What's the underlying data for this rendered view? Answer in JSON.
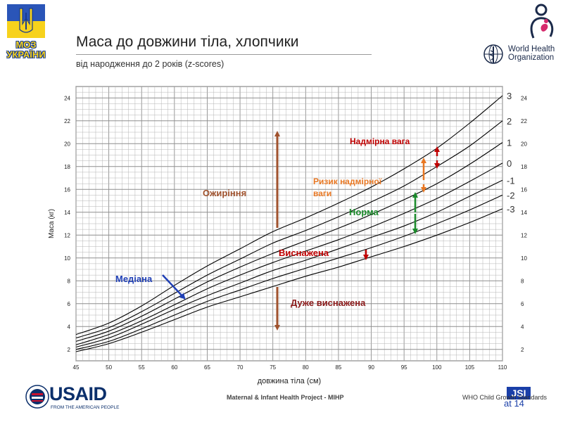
{
  "header": {
    "title": "Маса до довжини тіла, хлопчики",
    "subtitle": "від народження до 2 років (z-scores)"
  },
  "logos": {
    "moz": "МОЗ УКРАЇНИ",
    "who_line1": "World Health",
    "who_line2": "Organization",
    "usaid": "USAID",
    "usaid_tagline": "FROM THE AMERICAN PEOPLE"
  },
  "footer": {
    "project": "Maternal & Infant Health Project - MIHP",
    "standards": "WHO Child Growth Standards",
    "code": "at 14"
  },
  "colors": {
    "grid": "#b4b4b4",
    "curves": "#000000",
    "obesity": "#a0522d",
    "overweight": "#c00000",
    "risk": "#e87722",
    "normal": "#1a8a2a",
    "wasted": "#c00000",
    "severely_wasted": "#8b1a1a",
    "median_arrow": "#1f3fb5"
  },
  "annotations": {
    "obesity": "Ожиріння",
    "overweight": "Надмірна вага",
    "risk_line1": "Ризик надмірної",
    "risk_line2": "ваги",
    "normal": "Норма",
    "wasted": "Виснажена",
    "severely_wasted": "Дуже виснажена",
    "median": "Медіана"
  },
  "chart_data": {
    "type": "line",
    "title": "Маса до довжини тіла, хлопчики",
    "subtitle": "від народження до 2 років (z-scores)",
    "xlabel": "довжина тіла (см)",
    "ylabel": "Маса (кг)",
    "xlim": [
      45,
      110
    ],
    "ylim": [
      1,
      25
    ],
    "x_ticks": [
      45,
      50,
      55,
      60,
      65,
      70,
      75,
      80,
      85,
      90,
      95,
      100,
      105,
      110
    ],
    "y_ticks": [
      2,
      4,
      6,
      8,
      10,
      12,
      14,
      16,
      18,
      20,
      22,
      24
    ],
    "grid": true,
    "x": [
      45,
      50,
      55,
      60,
      65,
      70,
      75,
      80,
      85,
      90,
      95,
      100,
      105,
      110
    ],
    "series": [
      {
        "name": "3",
        "values": [
          3.3,
          4.3,
          5.8,
          7.6,
          9.3,
          10.8,
          12.3,
          13.5,
          14.8,
          16.2,
          17.8,
          19.6,
          21.8,
          24.2
        ]
      },
      {
        "name": "2",
        "values": [
          3.0,
          3.9,
          5.3,
          6.9,
          8.5,
          9.9,
          11.3,
          12.4,
          13.6,
          14.9,
          16.3,
          18.0,
          19.8,
          22.0
        ]
      },
      {
        "name": "1",
        "values": [
          2.7,
          3.6,
          4.9,
          6.4,
          7.9,
          9.2,
          10.4,
          11.5,
          12.6,
          13.8,
          15.1,
          16.5,
          18.2,
          20.1
        ]
      },
      {
        "name": "0",
        "values": [
          2.4,
          3.3,
          4.5,
          5.9,
          7.3,
          8.5,
          9.6,
          10.6,
          11.6,
          12.7,
          13.9,
          15.2,
          16.7,
          18.3
        ]
      },
      {
        "name": "-1",
        "values": [
          2.2,
          3.0,
          4.2,
          5.5,
          6.7,
          7.8,
          8.9,
          9.8,
          10.8,
          11.8,
          12.8,
          14.0,
          15.4,
          16.8
        ]
      },
      {
        "name": "-2",
        "values": [
          2.0,
          2.7,
          3.8,
          5.0,
          6.2,
          7.2,
          8.2,
          9.1,
          10.0,
          10.9,
          11.9,
          13.0,
          14.2,
          15.5
        ]
      },
      {
        "name": "-3",
        "values": [
          1.8,
          2.5,
          3.5,
          4.6,
          5.7,
          6.6,
          7.5,
          8.4,
          9.2,
          10.1,
          11.0,
          12.0,
          13.1,
          14.3
        ]
      }
    ],
    "right_labels": [
      "3",
      "2",
      "1",
      "0",
      "-1",
      "-2",
      "-3"
    ]
  }
}
